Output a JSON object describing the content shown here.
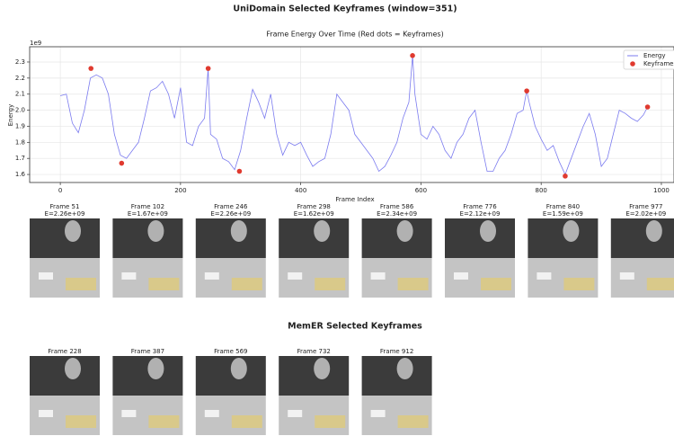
{
  "title": "UniDomain Selected Keyframes (window=351)",
  "chart_data": {
    "type": "line",
    "title": "Frame Energy Over Time (Red dots = Keyframes)",
    "xlabel": "Frame Index",
    "ylabel": "Energy",
    "y_offset_label": "1e9",
    "xlim": [
      -51,
      1021
    ],
    "ylim": [
      1.55,
      2.395
    ],
    "xticks": [
      0,
      200,
      400,
      600,
      800,
      1000
    ],
    "yticks": [
      1.6,
      1.7,
      1.8,
      1.9,
      {
        "value": 2,
        "label": "2.0"
      },
      2.1,
      2.2,
      2.3
    ],
    "grid": true,
    "legend": "upper right",
    "series": [
      {
        "name": "Energy",
        "color": "#7b7bef",
        "x": [
          0,
          10,
          20,
          30,
          40,
          50,
          60,
          70,
          80,
          90,
          100,
          110,
          120,
          130,
          140,
          150,
          160,
          170,
          180,
          190,
          200,
          210,
          220,
          230,
          240,
          246,
          250,
          260,
          270,
          280,
          290,
          300,
          310,
          320,
          330,
          340,
          350,
          360,
          370,
          380,
          390,
          400,
          410,
          420,
          430,
          440,
          450,
          460,
          470,
          480,
          490,
          500,
          510,
          520,
          530,
          540,
          550,
          560,
          570,
          580,
          586,
          590,
          600,
          610,
          620,
          630,
          640,
          650,
          660,
          670,
          680,
          690,
          700,
          710,
          720,
          730,
          740,
          750,
          760,
          770,
          776,
          780,
          790,
          800,
          810,
          820,
          830,
          840,
          850,
          860,
          870,
          880,
          890,
          900,
          910,
          920,
          930,
          940,
          950,
          960,
          970,
          977
        ],
        "values": [
          2.09,
          2.1,
          1.92,
          1.86,
          2.0,
          2.2,
          2.22,
          2.2,
          2.1,
          1.85,
          1.72,
          1.7,
          1.75,
          1.8,
          1.95,
          2.12,
          2.14,
          2.18,
          2.1,
          1.95,
          2.14,
          1.8,
          1.78,
          1.9,
          1.95,
          2.26,
          1.85,
          1.82,
          1.7,
          1.68,
          1.63,
          1.75,
          1.95,
          2.13,
          2.05,
          1.95,
          2.1,
          1.85,
          1.72,
          1.8,
          1.78,
          1.8,
          1.72,
          1.65,
          1.68,
          1.7,
          1.85,
          2.1,
          2.05,
          2.0,
          1.85,
          1.8,
          1.75,
          1.7,
          1.62,
          1.65,
          1.72,
          1.8,
          1.95,
          2.05,
          2.34,
          2.1,
          1.85,
          1.82,
          1.9,
          1.85,
          1.75,
          1.7,
          1.8,
          1.85,
          1.95,
          2.0,
          1.8,
          1.62,
          1.62,
          1.7,
          1.75,
          1.85,
          1.98,
          2.0,
          2.12,
          2.05,
          1.9,
          1.82,
          1.75,
          1.78,
          1.68,
          1.6,
          1.7,
          1.8,
          1.9,
          1.98,
          1.85,
          1.65,
          1.7,
          1.85,
          2.0,
          1.98,
          1.95,
          1.93,
          1.97,
          2.02
        ]
      },
      {
        "name": "Keyframes",
        "color": "#e03a2f",
        "x": [
          51,
          102,
          246,
          298,
          586,
          776,
          840,
          977
        ],
        "values": [
          2.26,
          1.67,
          2.26,
          1.62,
          2.34,
          2.12,
          1.59,
          2.02
        ],
        "value_labels": [
          "E=2.26e+09",
          "E=1.67e+09",
          "E=2.26e+09",
          "E=1.62e+09",
          "E=2.34e+09",
          "E=2.12e+09",
          "E=1.59e+09",
          "E=2.02e+09"
        ]
      }
    ]
  },
  "unidomain_panels": [
    "Frame 51",
    "Frame 102",
    "Frame 246",
    "Frame 298",
    "Frame 586",
    "Frame 776",
    "Frame 840",
    "Frame 977"
  ],
  "memer_title": "MemER Selected Keyframes",
  "memer_panels": [
    "Frame 228",
    "Frame 387",
    "Frame 569",
    "Frame 732",
    "Frame 912"
  ]
}
